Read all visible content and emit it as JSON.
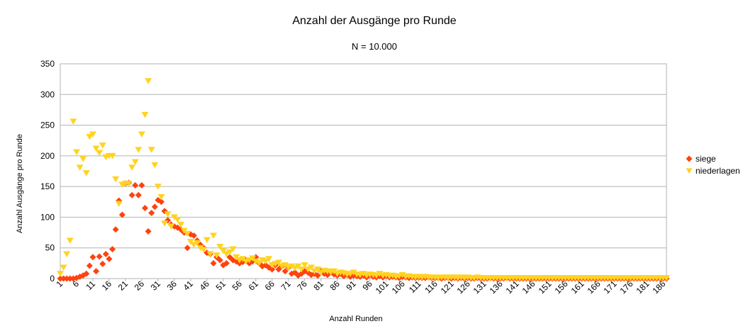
{
  "chart_data": {
    "type": "scatter",
    "title": "Anzahl der Ausgänge pro Runde",
    "subtitle": "N = 10.000",
    "xlabel": "Anzahl Runden",
    "ylabel": "Anzahl Ausgänge pro Runde",
    "xlim": [
      1,
      187
    ],
    "ylim": [
      0,
      350
    ],
    "y_ticks": [
      0,
      50,
      100,
      150,
      200,
      250,
      300,
      350
    ],
    "x_tick_labels": [
      "1",
      "6",
      "11",
      "16",
      "21",
      "26",
      "31",
      "36",
      "41",
      "46",
      "51",
      "56",
      "61",
      "66",
      "71",
      "76",
      "81",
      "86",
      "91",
      "96",
      "101",
      "106",
      "111",
      "116",
      "121",
      "126",
      "131",
      "136",
      "141",
      "146",
      "151",
      "156",
      "161",
      "166",
      "171",
      "176",
      "181",
      "186"
    ],
    "grid": true,
    "legend_position": "right",
    "series": [
      {
        "name": "siege",
        "color": "#ff420e",
        "marker": "diamond",
        "x": [
          1,
          2,
          3,
          4,
          5,
          6,
          7,
          8,
          9,
          10,
          11,
          12,
          13,
          14,
          15,
          16,
          17,
          18,
          19,
          20,
          21,
          22,
          23,
          24,
          25,
          26,
          27,
          28,
          29,
          30,
          31,
          32,
          33,
          34,
          35,
          36,
          37,
          38,
          39,
          40,
          41,
          42,
          43,
          44,
          45,
          46,
          47,
          48,
          49,
          50,
          51,
          52,
          53,
          54,
          55,
          56,
          57,
          58,
          59,
          60,
          61,
          62,
          63,
          64,
          65,
          66,
          67,
          68,
          69,
          70,
          71,
          72,
          73,
          74,
          75,
          76,
          77,
          78,
          79,
          80,
          81,
          82,
          83,
          84,
          85,
          86,
          87,
          88,
          89,
          90,
          91,
          92,
          93,
          94,
          95,
          96,
          97,
          98,
          99,
          100,
          101,
          102,
          103,
          104,
          105,
          106,
          107,
          108,
          109,
          110,
          111,
          112,
          113,
          114,
          115,
          116,
          117,
          118,
          119,
          120,
          121,
          122,
          123,
          124,
          125,
          126,
          127,
          128,
          129,
          130,
          131,
          132,
          133,
          134,
          135,
          136,
          137,
          138,
          139,
          140,
          141,
          142,
          143,
          144,
          145,
          146,
          147,
          148,
          149,
          150,
          151,
          152,
          153,
          154,
          155,
          156,
          157,
          158,
          159,
          160,
          161,
          162,
          163,
          164,
          165,
          166,
          167,
          168,
          169,
          170,
          171,
          172,
          173,
          174,
          175,
          176,
          177,
          178,
          179,
          180,
          181,
          182,
          183,
          184,
          185,
          186,
          187
        ],
        "y": [
          0,
          0,
          0,
          0,
          0,
          1,
          3,
          5,
          8,
          21,
          35,
          12,
          36,
          24,
          40,
          32,
          48,
          80,
          127,
          104,
          155,
          156,
          136,
          152,
          136,
          152,
          115,
          77,
          107,
          117,
          128,
          125,
          110,
          95,
          88,
          85,
          83,
          80,
          75,
          50,
          72,
          70,
          62,
          55,
          50,
          42,
          40,
          25,
          35,
          30,
          22,
          25,
          35,
          30,
          28,
          25,
          27,
          30,
          25,
          28,
          35,
          25,
          20,
          22,
          18,
          15,
          22,
          15,
          20,
          12,
          18,
          8,
          10,
          5,
          8,
          12,
          10,
          6,
          8,
          5,
          12,
          8,
          6,
          10,
          7,
          5,
          8,
          4,
          6,
          3,
          5,
          4,
          3,
          5,
          2,
          6,
          3,
          2,
          4,
          2,
          5,
          2,
          3,
          2,
          1,
          3,
          2,
          1,
          2,
          1,
          2,
          1,
          1,
          2,
          1,
          1,
          1,
          0,
          1,
          1,
          0,
          1,
          0,
          1,
          0,
          1,
          0,
          0,
          1,
          0,
          0,
          0,
          1,
          0,
          0,
          0,
          0,
          1,
          0,
          0,
          0,
          0,
          0,
          0,
          0,
          0,
          0,
          0,
          0,
          0,
          0,
          0,
          0,
          0,
          0,
          0,
          0,
          0,
          0,
          0,
          0,
          0,
          0,
          0,
          0,
          0,
          0,
          0,
          0,
          0,
          0,
          0,
          0,
          0,
          0,
          0,
          0,
          0,
          0,
          0,
          0,
          0,
          0,
          0,
          0,
          0,
          0
        ]
      },
      {
        "name": "niederlagen",
        "color": "#ffd320",
        "marker": "triangle-down",
        "x": [
          1,
          2,
          3,
          4,
          5,
          6,
          7,
          8,
          9,
          10,
          11,
          12,
          13,
          14,
          15,
          16,
          17,
          18,
          19,
          20,
          21,
          22,
          23,
          24,
          25,
          26,
          27,
          28,
          29,
          30,
          31,
          32,
          33,
          34,
          35,
          36,
          37,
          38,
          39,
          40,
          41,
          42,
          43,
          44,
          45,
          46,
          47,
          48,
          49,
          50,
          51,
          52,
          53,
          54,
          55,
          56,
          57,
          58,
          59,
          60,
          61,
          62,
          63,
          64,
          65,
          66,
          67,
          68,
          69,
          70,
          71,
          72,
          73,
          74,
          75,
          76,
          77,
          78,
          79,
          80,
          81,
          82,
          83,
          84,
          85,
          86,
          87,
          88,
          89,
          90,
          91,
          92,
          93,
          94,
          95,
          96,
          97,
          98,
          99,
          100,
          101,
          102,
          103,
          104,
          105,
          106,
          107,
          108,
          109,
          110,
          111,
          112,
          113,
          114,
          115,
          116,
          117,
          118,
          119,
          120,
          121,
          122,
          123,
          124,
          125,
          126,
          127,
          128,
          129,
          130,
          131,
          132,
          133,
          134,
          135,
          136,
          137,
          138,
          139,
          140,
          141,
          142,
          143,
          144,
          145,
          146,
          147,
          148,
          149,
          150,
          151,
          152,
          153,
          154,
          155,
          156,
          157,
          158,
          159,
          160,
          161,
          162,
          163,
          164,
          165,
          166,
          167,
          168,
          169,
          170,
          171,
          172,
          173,
          174,
          175,
          176,
          177,
          178,
          179,
          180,
          181,
          182,
          183,
          184,
          185,
          186,
          187
        ],
        "y": [
          8,
          18,
          40,
          62,
          256,
          206,
          181,
          195,
          172,
          231,
          235,
          212,
          205,
          217,
          198,
          200,
          200,
          162,
          122,
          153,
          155,
          155,
          181,
          190,
          210,
          235,
          267,
          322,
          210,
          185,
          150,
          133,
          90,
          105,
          85,
          100,
          96,
          88,
          78,
          73,
          60,
          55,
          58,
          50,
          47,
          63,
          40,
          70,
          38,
          52,
          45,
          40,
          43,
          48,
          35,
          30,
          32,
          28,
          30,
          33,
          28,
          25,
          30,
          28,
          32,
          22,
          24,
          26,
          20,
          22,
          18,
          20,
          17,
          20,
          15,
          22,
          15,
          18,
          12,
          15,
          10,
          13,
          12,
          10,
          12,
          8,
          10,
          9,
          7,
          8,
          10,
          7,
          6,
          8,
          5,
          7,
          6,
          5,
          8,
          5,
          6,
          4,
          5,
          3,
          4,
          6,
          3,
          4,
          3,
          2,
          3,
          2,
          3,
          2,
          2,
          2,
          1,
          2,
          2,
          1,
          2,
          2,
          1,
          2,
          1,
          2,
          1,
          1,
          2,
          1,
          1,
          1,
          1,
          1,
          1,
          1,
          1,
          1,
          1,
          1,
          1,
          1,
          1,
          1,
          1,
          1,
          1,
          1,
          1,
          1,
          1,
          1,
          1,
          1,
          1,
          1,
          1,
          1,
          1,
          1,
          1,
          1,
          1,
          1,
          1,
          1,
          1,
          1,
          1,
          1,
          1,
          1,
          1,
          1,
          1,
          1,
          1,
          1,
          1,
          1,
          1,
          1,
          1,
          1,
          1,
          1,
          1
        ]
      }
    ]
  }
}
